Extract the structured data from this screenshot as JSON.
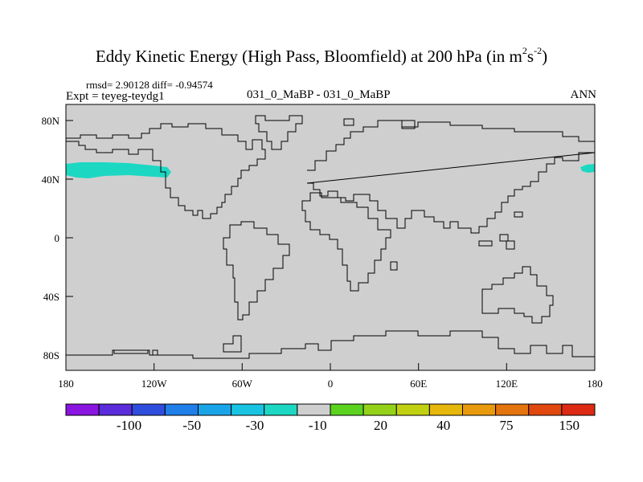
{
  "title": {
    "main": "Eddy Kinetic Energy (High Pass, Bloomfield) at 200 hPa (in m",
    "sup1": "2",
    "mid": "s",
    "sup2": "-2",
    "end": ")"
  },
  "stats": {
    "text": "rmsd= 2.90128 diff= -0.94574"
  },
  "expt": {
    "text": "Expt = teyeg-teydg1"
  },
  "case": {
    "text": "031_0_MaBP - 031_0_MaBP"
  },
  "season": {
    "text": "ANN"
  },
  "axes": {
    "lon_labels": [
      "180",
      "120W",
      "60W",
      "0",
      "60E",
      "120E",
      "180"
    ],
    "lat_labels": [
      "80N",
      "40N",
      "0",
      "40S",
      "80S"
    ]
  },
  "colorbar": {
    "labels": [
      "-100",
      "-50",
      "-30",
      "-10",
      "20",
      "40",
      "75",
      "150"
    ],
    "colors": [
      "#8a14e0",
      "#5a2cdc",
      "#2f4ddc",
      "#1f7ee8",
      "#1aa4e8",
      "#18c4e2",
      "#1cd8c2",
      "#cfcfcf",
      "#5ad21e",
      "#94d21a",
      "#c2d012",
      "#e6b80c",
      "#e89a0c",
      "#e4740e",
      "#e0480e",
      "#dc2a14"
    ]
  },
  "map": {
    "land_fill": "#cfcfcf",
    "anomaly_color": "#1cd8c2"
  }
}
